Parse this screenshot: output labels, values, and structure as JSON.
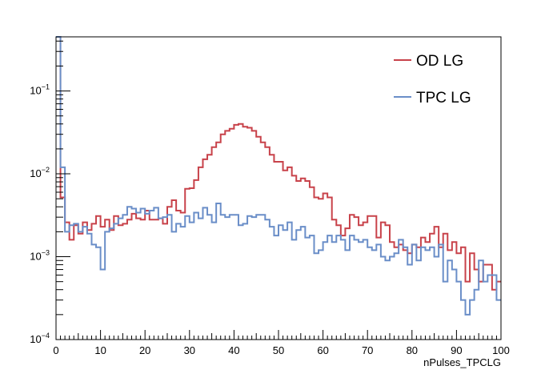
{
  "chart_data": {
    "type": "line",
    "xlabel": "nPulses_TPCLG",
    "ylabel": "",
    "xlim": [
      0,
      100
    ],
    "ylim": [
      0.0001,
      0.45
    ],
    "yscale": "log",
    "grid": false,
    "legend_position": "top-right",
    "x_ticks": [
      "0",
      "10",
      "20",
      "30",
      "40",
      "50",
      "60",
      "70",
      "80",
      "90",
      "100"
    ],
    "y_ticks": [
      {
        "value": 0.1,
        "base": "10",
        "exp": "−1"
      },
      {
        "value": 0.01,
        "base": "10",
        "exp": "−2"
      },
      {
        "value": 0.001,
        "base": "10",
        "exp": "−3"
      },
      {
        "value": 0.0001,
        "base": "10",
        "exp": "−4"
      }
    ],
    "bin_edges_start": 0,
    "bin_width": 1,
    "series": [
      {
        "name": "OD LG",
        "color": "#c8424a",
        "values": [
          0.45,
          0.0052,
          0.0026,
          0.0016,
          0.0024,
          0.0019,
          0.0026,
          0.0021,
          0.0025,
          0.0031,
          0.0023,
          0.0028,
          0.0021,
          0.0031,
          0.0024,
          0.0025,
          0.0028,
          0.0033,
          0.0029,
          0.0028,
          0.0036,
          0.0028,
          0.0028,
          0.0029,
          0.0025,
          0.004,
          0.0048,
          0.0036,
          0.0034,
          0.0066,
          0.0067,
          0.0084,
          0.012,
          0.015,
          0.017,
          0.021,
          0.024,
          0.03,
          0.033,
          0.035,
          0.039,
          0.04,
          0.037,
          0.036,
          0.033,
          0.028,
          0.024,
          0.021,
          0.017,
          0.014,
          0.014,
          0.011,
          0.012,
          0.0095,
          0.0082,
          0.0088,
          0.0082,
          0.0069,
          0.0052,
          0.005,
          0.0058,
          0.0052,
          0.0028,
          0.0024,
          0.0018,
          0.0022,
          0.0032,
          0.003,
          0.0024,
          0.0026,
          0.0031,
          0.0031,
          0.0017,
          0.0026,
          0.0024,
          0.0015,
          0.0013,
          0.0014,
          0.0012,
          0.0011,
          0.0014,
          0.0013,
          0.0017,
          0.0015,
          0.0019,
          0.0023,
          0.0013,
          0.0019,
          0.0012,
          0.0015,
          0.0011,
          0.0013,
          0.0005,
          0.0011,
          0.0007,
          0.0005,
          0.0008,
          0.0008,
          0.0004,
          0.0005
        ]
      },
      {
        "name": "TPC LG",
        "color": "#6a8ec8",
        "values": [
          0.45,
          0.012,
          0.002,
          0.0024,
          0.0025,
          0.002,
          0.0023,
          0.0019,
          0.0014,
          0.0013,
          0.0007,
          0.002,
          0.0022,
          0.0025,
          0.0029,
          0.0032,
          0.004,
          0.0038,
          0.0034,
          0.0038,
          0.0033,
          0.0036,
          0.0039,
          0.0029,
          0.003,
          0.0032,
          0.002,
          0.0025,
          0.0023,
          0.0031,
          0.0026,
          0.0034,
          0.0029,
          0.0039,
          0.0032,
          0.0026,
          0.0044,
          0.0032,
          0.003,
          0.0032,
          0.0032,
          0.0024,
          0.0025,
          0.0031,
          0.003,
          0.0032,
          0.0032,
          0.0028,
          0.0023,
          0.0018,
          0.0024,
          0.0021,
          0.0026,
          0.0016,
          0.0021,
          0.0023,
          0.0017,
          0.0018,
          0.0011,
          0.0012,
          0.0015,
          0.0018,
          0.0015,
          0.0018,
          0.0016,
          0.0012,
          0.0018,
          0.0016,
          0.0015,
          0.0016,
          0.0013,
          0.0012,
          0.0014,
          0.001,
          0.0009,
          0.001,
          0.0011,
          0.0016,
          0.0013,
          0.0008,
          0.0014,
          0.0009,
          0.0013,
          0.0012,
          0.0013,
          0.001,
          0.0014,
          0.0005,
          0.0009,
          0.0007,
          0.0005,
          0.0003,
          0.0002,
          0.0003,
          0.0004,
          0.0009,
          0.0005,
          0.0006,
          0.0006,
          0.0003
        ]
      }
    ]
  }
}
